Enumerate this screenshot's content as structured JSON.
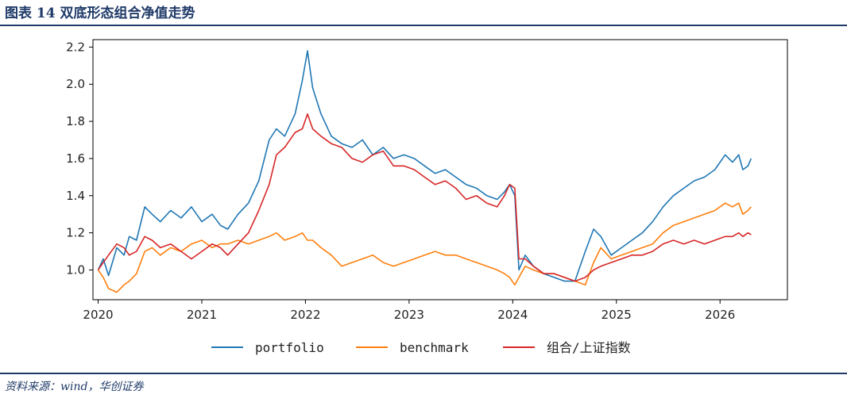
{
  "header": {
    "title": "图表 14   双底形态组合净值走势"
  },
  "footer": {
    "source": "资料来源：wind，华创证券"
  },
  "colors": {
    "accent": "#1f3a68",
    "portfolio": "#1f77b4",
    "benchmark": "#ff7f0e",
    "combo": "#d62728"
  },
  "chart_data": {
    "type": "line",
    "title": "",
    "xlabel": "",
    "ylabel": "",
    "xlim": [
      2019.95,
      2026.65
    ],
    "ylim": [
      0.84,
      2.24
    ],
    "grid": false,
    "legend_position": "bottom-center",
    "x_ticks": [
      "2020",
      "2021",
      "2022",
      "2023",
      "2024",
      "2025",
      "2026"
    ],
    "y_ticks": [
      "1.0",
      "1.2",
      "1.4",
      "1.6",
      "1.8",
      "2.0",
      "2.2"
    ],
    "x": [
      2020.0,
      2020.05,
      2020.1,
      2020.18,
      2020.25,
      2020.3,
      2020.37,
      2020.45,
      2020.52,
      2020.6,
      2020.7,
      2020.8,
      2020.9,
      2021.0,
      2021.1,
      2021.18,
      2021.25,
      2021.35,
      2021.45,
      2021.55,
      2021.65,
      2021.72,
      2021.8,
      2021.9,
      2021.97,
      2022.02,
      2022.07,
      2022.15,
      2022.25,
      2022.35,
      2022.45,
      2022.55,
      2022.65,
      2022.75,
      2022.85,
      2022.95,
      2023.05,
      2023.15,
      2023.25,
      2023.35,
      2023.45,
      2023.55,
      2023.65,
      2023.75,
      2023.85,
      2023.92,
      2023.97,
      2024.02,
      2024.06,
      2024.12,
      2024.2,
      2024.3,
      2024.4,
      2024.5,
      2024.6,
      2024.7,
      2024.78,
      2024.85,
      2024.95,
      2025.05,
      2025.15,
      2025.25,
      2025.35,
      2025.45,
      2025.55,
      2025.65,
      2025.75,
      2025.85,
      2025.95,
      2026.05,
      2026.12,
      2026.18,
      2026.22,
      2026.27,
      2026.3
    ],
    "series": [
      {
        "name": "portfolio",
        "values": [
          1.0,
          1.06,
          0.97,
          1.12,
          1.08,
          1.18,
          1.16,
          1.34,
          1.3,
          1.26,
          1.32,
          1.28,
          1.34,
          1.26,
          1.3,
          1.24,
          1.22,
          1.3,
          1.36,
          1.48,
          1.7,
          1.76,
          1.72,
          1.84,
          2.02,
          2.18,
          1.98,
          1.84,
          1.72,
          1.68,
          1.66,
          1.7,
          1.62,
          1.66,
          1.6,
          1.62,
          1.6,
          1.56,
          1.52,
          1.54,
          1.5,
          1.46,
          1.44,
          1.4,
          1.38,
          1.42,
          1.46,
          1.4,
          1.0,
          1.08,
          1.02,
          0.98,
          0.96,
          0.94,
          0.94,
          1.1,
          1.22,
          1.18,
          1.08,
          1.12,
          1.16,
          1.2,
          1.26,
          1.34,
          1.4,
          1.44,
          1.48,
          1.5,
          1.54,
          1.62,
          1.58,
          1.62,
          1.54,
          1.56,
          1.6
        ]
      },
      {
        "name": "benchmark",
        "values": [
          1.0,
          0.96,
          0.9,
          0.88,
          0.92,
          0.94,
          0.98,
          1.1,
          1.12,
          1.08,
          1.12,
          1.1,
          1.14,
          1.16,
          1.12,
          1.14,
          1.14,
          1.16,
          1.14,
          1.16,
          1.18,
          1.2,
          1.16,
          1.18,
          1.2,
          1.16,
          1.16,
          1.12,
          1.08,
          1.02,
          1.04,
          1.06,
          1.08,
          1.04,
          1.02,
          1.04,
          1.06,
          1.08,
          1.1,
          1.08,
          1.08,
          1.06,
          1.04,
          1.02,
          1.0,
          0.98,
          0.96,
          0.92,
          0.96,
          1.02,
          1.0,
          0.98,
          0.98,
          0.96,
          0.94,
          0.92,
          1.04,
          1.12,
          1.06,
          1.08,
          1.1,
          1.12,
          1.14,
          1.2,
          1.24,
          1.26,
          1.28,
          1.3,
          1.32,
          1.36,
          1.34,
          1.36,
          1.3,
          1.32,
          1.34
        ]
      },
      {
        "name": "组合/上证指数",
        "values": [
          1.0,
          1.04,
          1.08,
          1.14,
          1.12,
          1.08,
          1.1,
          1.18,
          1.16,
          1.12,
          1.14,
          1.1,
          1.06,
          1.1,
          1.14,
          1.12,
          1.08,
          1.14,
          1.2,
          1.32,
          1.46,
          1.62,
          1.66,
          1.74,
          1.76,
          1.84,
          1.76,
          1.72,
          1.68,
          1.66,
          1.6,
          1.58,
          1.62,
          1.64,
          1.56,
          1.56,
          1.54,
          1.5,
          1.46,
          1.48,
          1.44,
          1.38,
          1.4,
          1.36,
          1.34,
          1.4,
          1.46,
          1.44,
          1.06,
          1.06,
          1.02,
          0.98,
          0.98,
          0.96,
          0.94,
          0.96,
          1.0,
          1.02,
          1.04,
          1.06,
          1.08,
          1.08,
          1.1,
          1.14,
          1.16,
          1.14,
          1.16,
          1.14,
          1.16,
          1.18,
          1.18,
          1.2,
          1.18,
          1.2,
          1.19
        ]
      }
    ]
  }
}
